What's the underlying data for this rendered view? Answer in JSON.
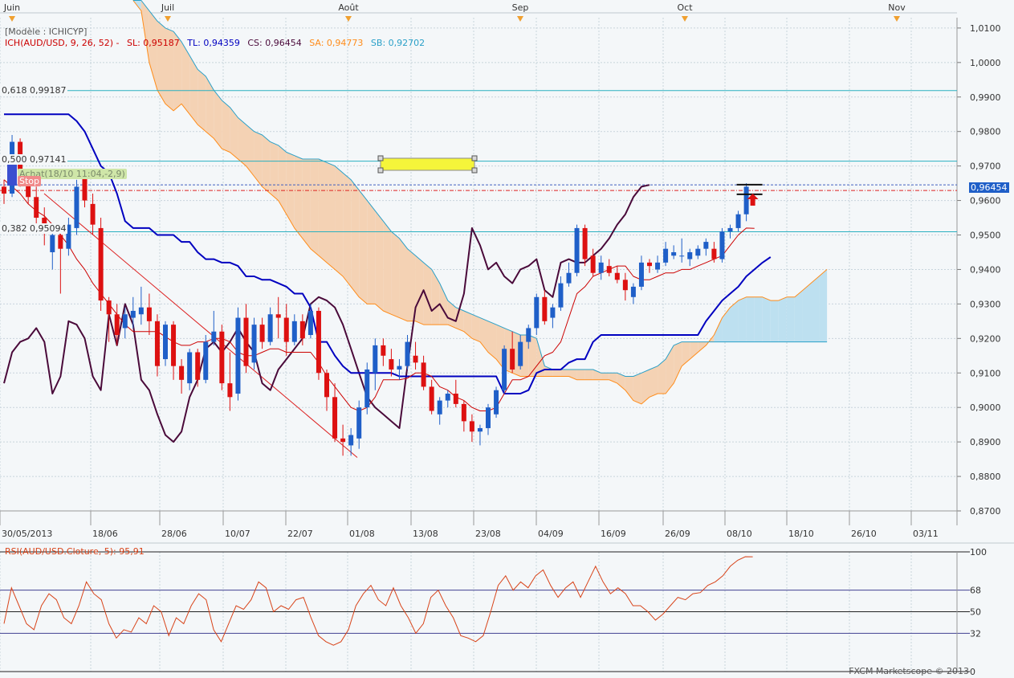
{
  "chart_data": [
    {
      "type": "candlestick",
      "ylim": [
        0.87,
        1.013
      ],
      "y_ticks": [
        "1,0100",
        "1,0000",
        "0,9900",
        "0,9800",
        "0,9700",
        "0,9600",
        "0,9500",
        "0,9400",
        "0,9300",
        "0,9200",
        "0,9100",
        "0,9000",
        "0,8900",
        "0,8800",
        "0,8700"
      ],
      "y_tick_values": [
        1.01,
        1.0,
        0.99,
        0.98,
        0.97,
        0.96,
        0.95,
        0.94,
        0.93,
        0.92,
        0.91,
        0.9,
        0.89,
        0.88,
        0.87
      ],
      "x_bottom_ticks": [
        "30/05/2013",
        "18/06",
        "28/06",
        "10/07",
        "22/07",
        "01/08",
        "13/08",
        "23/08",
        "04/09",
        "16/09",
        "26/09",
        "08/10",
        "18/10",
        "26/10",
        "03/11"
      ],
      "x_top_months": [
        "Juin",
        "Juil",
        "Août",
        "Sep",
        "Oct",
        "Nov"
      ],
      "legend": {
        "model": "[Modèle : ICHICYP]",
        "indicator": "ICH(AUD/USD, 9, 26, 52) -",
        "sl": "SL: 0,95187",
        "tl": "TL: 0,94359",
        "cs": "CS: 0,96454",
        "sa": "SA: 0,94773",
        "sb": "SB: 0,92702"
      },
      "fib_labels": {
        "f618": "0,618  0,99187",
        "f500": "0,500  0,97141",
        "f382": "0,382  0,95094"
      },
      "fib_levels": [
        0.99187,
        0.97141,
        0.95094
      ],
      "current_price_label": "0,96454",
      "current_price": 0.96454,
      "order_label": "Achat(18/10 11:04,-2,9)",
      "stop_label": "Stop",
      "candles": [
        [
          0.964,
          0.966,
          0.959,
          0.962
        ],
        [
          0.962,
          0.979,
          0.961,
          0.977
        ],
        [
          0.977,
          0.978,
          0.964,
          0.965
        ],
        [
          0.965,
          0.969,
          0.959,
          0.961
        ],
        [
          0.961,
          0.964,
          0.952,
          0.955
        ],
        [
          0.955,
          0.958,
          0.947,
          0.951
        ],
        [
          0.945,
          0.952,
          0.94,
          0.95
        ],
        [
          0.95,
          0.953,
          0.933,
          0.946
        ],
        [
          0.946,
          0.955,
          0.944,
          0.953
        ],
        [
          0.952,
          0.966,
          0.95,
          0.964
        ],
        [
          0.967,
          0.969,
          0.958,
          0.96
        ],
        [
          0.959,
          0.962,
          0.95,
          0.953
        ],
        [
          0.952,
          0.955,
          0.928,
          0.931
        ],
        [
          0.931,
          0.932,
          0.919,
          0.927
        ],
        [
          0.927,
          0.93,
          0.918,
          0.921
        ],
        [
          0.923,
          0.929,
          0.92,
          0.927
        ],
        [
          0.926,
          0.932,
          0.923,
          0.928
        ],
        [
          0.927,
          0.935,
          0.924,
          0.929
        ],
        [
          0.929,
          0.933,
          0.921,
          0.925
        ],
        [
          0.925,
          0.927,
          0.909,
          0.912
        ],
        [
          0.914,
          0.925,
          0.912,
          0.924
        ],
        [
          0.924,
          0.925,
          0.908,
          0.912
        ],
        [
          0.912,
          0.914,
          0.904,
          0.908
        ],
        [
          0.907,
          0.917,
          0.905,
          0.916
        ],
        [
          0.916,
          0.917,
          0.906,
          0.908
        ],
        [
          0.908,
          0.921,
          0.907,
          0.919
        ],
        [
          0.919,
          0.928,
          0.918,
          0.922
        ],
        [
          0.922,
          0.924,
          0.905,
          0.907
        ],
        [
          0.907,
          0.916,
          0.899,
          0.903
        ],
        [
          0.904,
          0.929,
          0.902,
          0.926
        ],
        [
          0.926,
          0.93,
          0.91,
          0.912
        ],
        [
          0.913,
          0.926,
          0.911,
          0.924
        ],
        [
          0.924,
          0.926,
          0.917,
          0.919
        ],
        [
          0.919,
          0.929,
          0.918,
          0.927
        ],
        [
          0.927,
          0.932,
          0.92,
          0.926
        ],
        [
          0.926,
          0.93,
          0.915,
          0.919
        ],
        [
          0.919,
          0.927,
          0.918,
          0.925
        ],
        [
          0.925,
          0.927,
          0.918,
          0.92
        ],
        [
          0.921,
          0.93,
          0.92,
          0.928
        ],
        [
          0.928,
          0.929,
          0.908,
          0.91
        ],
        [
          0.91,
          0.911,
          0.899,
          0.903
        ],
        [
          0.903,
          0.907,
          0.89,
          0.891
        ],
        [
          0.891,
          0.895,
          0.886,
          0.89
        ],
        [
          0.889,
          0.894,
          0.886,
          0.892
        ],
        [
          0.891,
          0.902,
          0.888,
          0.9
        ],
        [
          0.9,
          0.913,
          0.898,
          0.911
        ],
        [
          0.91,
          0.92,
          0.905,
          0.918
        ],
        [
          0.918,
          0.92,
          0.912,
          0.915
        ],
        [
          0.914,
          0.917,
          0.909,
          0.911
        ],
        [
          0.911,
          0.914,
          0.908,
          0.912
        ],
        [
          0.912,
          0.921,
          0.911,
          0.919
        ],
        [
          0.915,
          0.919,
          0.911,
          0.913
        ],
        [
          0.913,
          0.915,
          0.905,
          0.906
        ],
        [
          0.906,
          0.908,
          0.898,
          0.899
        ],
        [
          0.898,
          0.903,
          0.895,
          0.902
        ],
        [
          0.902,
          0.905,
          0.9,
          0.904
        ],
        [
          0.904,
          0.908,
          0.9,
          0.901
        ],
        [
          0.901,
          0.902,
          0.893,
          0.896
        ],
        [
          0.896,
          0.898,
          0.89,
          0.893
        ],
        [
          0.893,
          0.895,
          0.889,
          0.894
        ],
        [
          0.894,
          0.901,
          0.892,
          0.9
        ],
        [
          0.898,
          0.906,
          0.897,
          0.905
        ],
        [
          0.905,
          0.918,
          0.904,
          0.917
        ],
        [
          0.917,
          0.922,
          0.91,
          0.911
        ],
        [
          0.912,
          0.921,
          0.911,
          0.919
        ],
        [
          0.919,
          0.924,
          0.917,
          0.923
        ],
        [
          0.923,
          0.933,
          0.921,
          0.932
        ],
        [
          0.932,
          0.934,
          0.924,
          0.925
        ],
        [
          0.926,
          0.93,
          0.923,
          0.929
        ],
        [
          0.929,
          0.938,
          0.928,
          0.936
        ],
        [
          0.936,
          0.942,
          0.935,
          0.939
        ],
        [
          0.939,
          0.953,
          0.938,
          0.952
        ],
        [
          0.952,
          0.953,
          0.941,
          0.943
        ],
        [
          0.944,
          0.946,
          0.938,
          0.939
        ],
        [
          0.939,
          0.944,
          0.937,
          0.942
        ],
        [
          0.941,
          0.943,
          0.938,
          0.939
        ],
        [
          0.939,
          0.941,
          0.936,
          0.937
        ],
        [
          0.937,
          0.939,
          0.931,
          0.934
        ],
        [
          0.932,
          0.936,
          0.93,
          0.935
        ],
        [
          0.935,
          0.944,
          0.934,
          0.942
        ],
        [
          0.942,
          0.943,
          0.939,
          0.941
        ],
        [
          0.94,
          0.944,
          0.939,
          0.942
        ],
        [
          0.942,
          0.948,
          0.941,
          0.946
        ],
        [
          0.944,
          0.947,
          0.943,
          0.945
        ],
        [
          0.944,
          0.949,
          0.942,
          0.944
        ],
        [
          0.943,
          0.946,
          0.941,
          0.945
        ],
        [
          0.944,
          0.947,
          0.943,
          0.946
        ],
        [
          0.946,
          0.949,
          0.944,
          0.948
        ],
        [
          0.946,
          0.948,
          0.942,
          0.943
        ],
        [
          0.943,
          0.952,
          0.942,
          0.951
        ],
        [
          0.951,
          0.953,
          0.949,
          0.952
        ],
        [
          0.952,
          0.957,
          0.951,
          0.956
        ],
        [
          0.956,
          0.965,
          0.954,
          0.964
        ]
      ],
      "tenkan": [
        0.966,
        0.964,
        0.962,
        0.959,
        0.957,
        0.9555,
        0.953,
        0.95,
        0.947,
        0.943,
        0.94,
        0.936,
        0.933,
        0.93,
        0.927,
        0.924,
        0.922,
        0.922,
        0.922,
        0.922,
        0.9205,
        0.919,
        0.918,
        0.918,
        0.919,
        0.919,
        0.92,
        0.92,
        0.919,
        0.916,
        0.915,
        0.915,
        0.916,
        0.917,
        0.917,
        0.916,
        0.916,
        0.916,
        0.916,
        0.913,
        0.909,
        0.906,
        0.903,
        0.9,
        0.899,
        0.9,
        0.903,
        0.908,
        0.908,
        0.908,
        0.9085,
        0.91,
        0.91,
        0.909,
        0.906,
        0.905,
        0.903,
        0.902,
        0.9,
        0.899,
        0.899,
        0.9,
        0.904,
        0.908,
        0.908,
        0.909,
        0.912,
        0.915,
        0.916,
        0.919,
        0.926,
        0.933,
        0.935,
        0.938,
        0.939,
        0.94,
        0.941,
        0.941,
        0.938,
        0.937,
        0.937,
        0.938,
        0.939,
        0.939,
        0.94,
        0.94,
        0.941,
        0.942,
        0.943,
        0.944,
        0.947,
        0.95,
        0.952,
        0.9519
      ],
      "kijun": [
        0.985,
        0.985,
        0.985,
        0.985,
        0.985,
        0.985,
        0.985,
        0.985,
        0.985,
        0.983,
        0.98,
        0.975,
        0.97,
        0.968,
        0.962,
        0.954,
        0.952,
        0.952,
        0.952,
        0.95,
        0.95,
        0.95,
        0.948,
        0.948,
        0.945,
        0.943,
        0.943,
        0.942,
        0.942,
        0.941,
        0.938,
        0.938,
        0.937,
        0.937,
        0.936,
        0.935,
        0.933,
        0.933,
        0.929,
        0.919,
        0.919,
        0.915,
        0.912,
        0.91,
        0.91,
        0.91,
        0.91,
        0.91,
        0.91,
        0.909,
        0.909,
        0.909,
        0.909,
        0.909,
        0.909,
        0.909,
        0.909,
        0.909,
        0.909,
        0.909,
        0.909,
        0.909,
        0.904,
        0.904,
        0.904,
        0.905,
        0.91,
        0.911,
        0.911,
        0.911,
        0.913,
        0.914,
        0.914,
        0.919,
        0.921,
        0.921,
        0.921,
        0.921,
        0.921,
        0.921,
        0.921,
        0.921,
        0.921,
        0.921,
        0.921,
        0.921,
        0.921,
        0.925,
        0.928,
        0.931,
        0.933,
        0.935,
        0.938,
        0.94,
        0.942,
        0.9436
      ],
      "chikou": [
        0.907,
        0.916,
        0.919,
        0.92,
        0.923,
        0.919,
        0.904,
        0.909,
        0.925,
        0.924,
        0.92,
        0.909,
        0.905,
        0.927,
        0.918,
        0.93,
        0.924,
        0.908,
        0.905,
        0.898,
        0.892,
        0.89,
        0.893,
        0.903,
        0.908,
        0.917,
        0.919,
        0.916,
        0.919,
        0.923,
        0.919,
        0.916,
        0.907,
        0.905,
        0.911,
        0.914,
        0.917,
        0.92,
        0.93,
        0.932,
        0.931,
        0.929,
        0.924,
        0.917,
        0.91,
        0.903,
        0.9,
        0.898,
        0.896,
        0.894,
        0.912,
        0.929,
        0.934,
        0.928,
        0.93,
        0.926,
        0.925,
        0.933,
        0.952,
        0.947,
        0.94,
        0.942,
        0.938,
        0.936,
        0.94,
        0.941,
        0.943,
        0.934,
        0.932,
        0.942,
        0.943,
        0.942,
        0.942,
        0.944,
        0.946,
        0.949,
        0.953,
        0.956,
        0.961,
        0.964,
        0.9645
      ],
      "senkou_a": [
        1.018,
        1.015,
        1.0,
        0.992,
        0.988,
        0.986,
        0.988,
        0.985,
        0.982,
        0.98,
        0.978,
        0.975,
        0.974,
        0.972,
        0.97,
        0.967,
        0.964,
        0.962,
        0.96,
        0.956,
        0.952,
        0.949,
        0.946,
        0.944,
        0.942,
        0.94,
        0.938,
        0.935,
        0.932,
        0.93,
        0.93,
        0.928,
        0.927,
        0.926,
        0.925,
        0.925,
        0.924,
        0.924,
        0.924,
        0.924,
        0.923,
        0.922,
        0.92,
        0.919,
        0.916,
        0.914,
        0.911,
        0.91,
        0.909,
        0.909,
        0.909,
        0.909,
        0.909,
        0.909,
        0.909,
        0.908,
        0.908,
        0.908,
        0.908,
        0.908,
        0.907,
        0.905,
        0.902,
        0.901,
        0.903,
        0.904,
        0.904,
        0.907,
        0.912,
        0.914,
        0.916,
        0.918,
        0.921,
        0.926,
        0.929,
        0.931,
        0.932,
        0.932,
        0.932,
        0.931,
        0.931,
        0.932,
        0.932,
        0.934,
        0.936,
        0.938,
        0.94
      ],
      "senkou_b": [
        1.018,
        1.018,
        1.015,
        1.012,
        1.01,
        1.009,
        1.006,
        1.002,
        0.998,
        0.996,
        0.992,
        0.989,
        0.987,
        0.984,
        0.982,
        0.98,
        0.979,
        0.977,
        0.976,
        0.974,
        0.973,
        0.972,
        0.972,
        0.972,
        0.971,
        0.97,
        0.968,
        0.966,
        0.963,
        0.96,
        0.957,
        0.954,
        0.951,
        0.949,
        0.946,
        0.944,
        0.942,
        0.94,
        0.936,
        0.931,
        0.929,
        0.928,
        0.927,
        0.926,
        0.925,
        0.924,
        0.923,
        0.922,
        0.921,
        0.921,
        0.92,
        0.912,
        0.911,
        0.911,
        0.911,
        0.911,
        0.911,
        0.911,
        0.91,
        0.91,
        0.91,
        0.909,
        0.909,
        0.91,
        0.911,
        0.912,
        0.914,
        0.918,
        0.919,
        0.919,
        0.919,
        0.919,
        0.919,
        0.919,
        0.919,
        0.919,
        0.919,
        0.919,
        0.919,
        0.919,
        0.919,
        0.919,
        0.919,
        0.919,
        0.919,
        0.919,
        0.919
      ]
    },
    {
      "type": "line",
      "title": "RSI(AUD/USD.Cloture, 5): 95,91",
      "ylim": [
        0,
        100
      ],
      "y_ticks": [
        "100",
        "68",
        "50",
        "32",
        "0"
      ],
      "y_tick_values": [
        100,
        68,
        50,
        32,
        0
      ],
      "series": [
        {
          "name": "RSI(AUD/USD.Cloture, 5)",
          "values": [
            40,
            70,
            55,
            40,
            35,
            55,
            65,
            60,
            45,
            40,
            55,
            75,
            65,
            60,
            40,
            28,
            35,
            33,
            45,
            40,
            55,
            50,
            30,
            45,
            40,
            55,
            65,
            60,
            35,
            25,
            40,
            55,
            52,
            60,
            75,
            70,
            50,
            55,
            52,
            60,
            62,
            45,
            30,
            25,
            22,
            25,
            35,
            55,
            65,
            72,
            60,
            55,
            70,
            55,
            45,
            32,
            40,
            62,
            68,
            55,
            45,
            30,
            28,
            25,
            30,
            50,
            72,
            80,
            68,
            75,
            70,
            80,
            85,
            72,
            62,
            70,
            75,
            62,
            75,
            88,
            75,
            65,
            70,
            65,
            55,
            55,
            50,
            43,
            48,
            55,
            62,
            60,
            65,
            66,
            72,
            75,
            80,
            88,
            93,
            96,
            95.91
          ]
        }
      ]
    }
  ],
  "colors": {
    "bull": "#1f5fc8",
    "bear": "#dd1111",
    "tenkan": "#cc0000",
    "kijun": "#0000c0",
    "chikou": "#4a0a3a",
    "senkou_a": "#ff8c1a",
    "senkou_b": "#2aa0c8",
    "cloud_bear": "#f4d2b4",
    "cloud_bull": "#bde0f0",
    "fib": "#2ab0c0",
    "rsi": "#d8441a",
    "grid": "#c8d4dc",
    "axis_bg": "#f4f7f9"
  },
  "footer": {
    "watermark": "FXCM Marketscope © 2013"
  }
}
